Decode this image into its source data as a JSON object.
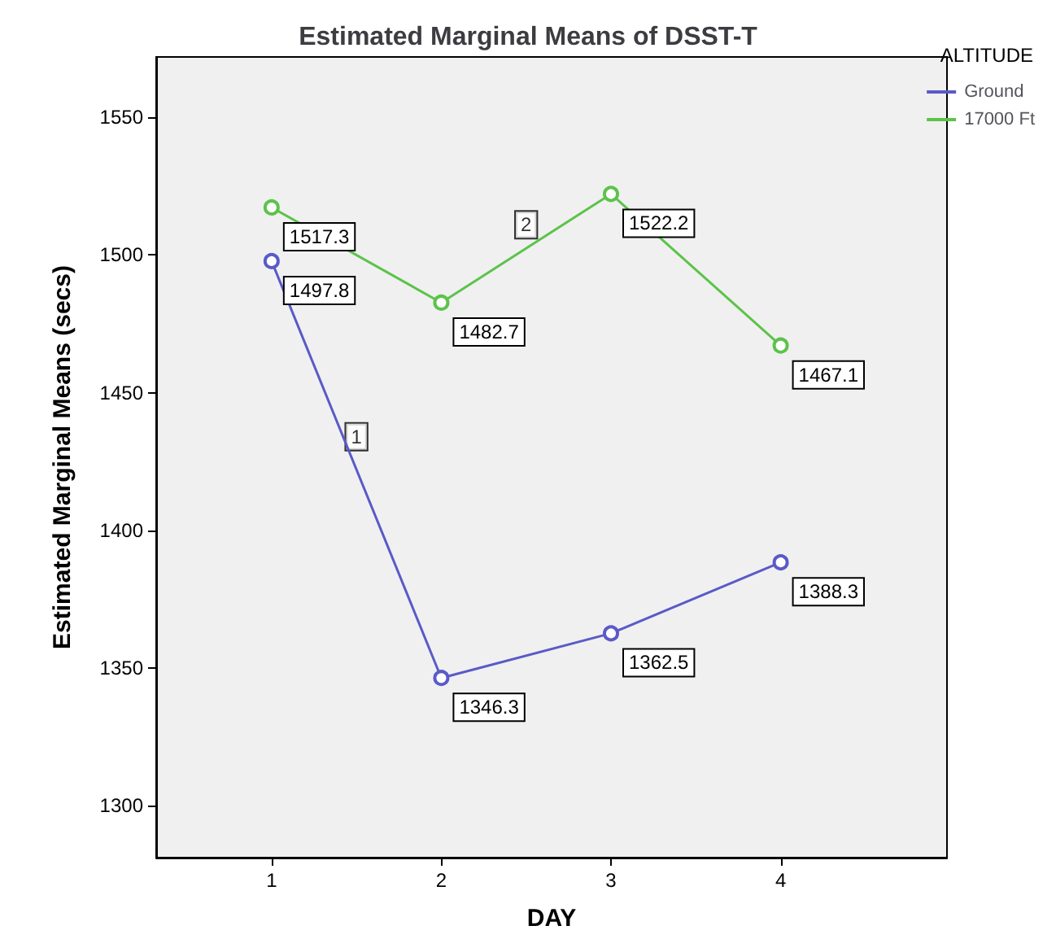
{
  "chart_data": {
    "type": "line",
    "title": "Estimated Marginal Means of DSST-T",
    "xlabel": "DAY",
    "ylabel": "Estimated Marginal Means (secs)",
    "legend_title": "ALTITUDE",
    "x": [
      1,
      2,
      3,
      4
    ],
    "xlim": [
      0.32,
      4.98
    ],
    "xticks": [
      1,
      2,
      3,
      4
    ],
    "ylim": [
      1281,
      1572
    ],
    "yticks": [
      1300,
      1350,
      1400,
      1450,
      1500,
      1550
    ],
    "series": [
      {
        "name": "Ground",
        "color": "#5a5ac8",
        "values": [
          1497.8,
          1346.3,
          1362.5,
          1388.3
        ]
      },
      {
        "name": "17000 Ft",
        "color": "#5cc34a",
        "values": [
          1517.3,
          1482.7,
          1522.2,
          1467.1
        ]
      }
    ],
    "annotations": [
      {
        "text": "1",
        "x": 1.5,
        "y": 1434
      },
      {
        "text": "2",
        "x": 2.5,
        "y": 1511
      }
    ],
    "data_labels": true,
    "marker": "circle",
    "line_style": "solid",
    "grid": false,
    "legend": "top right"
  }
}
